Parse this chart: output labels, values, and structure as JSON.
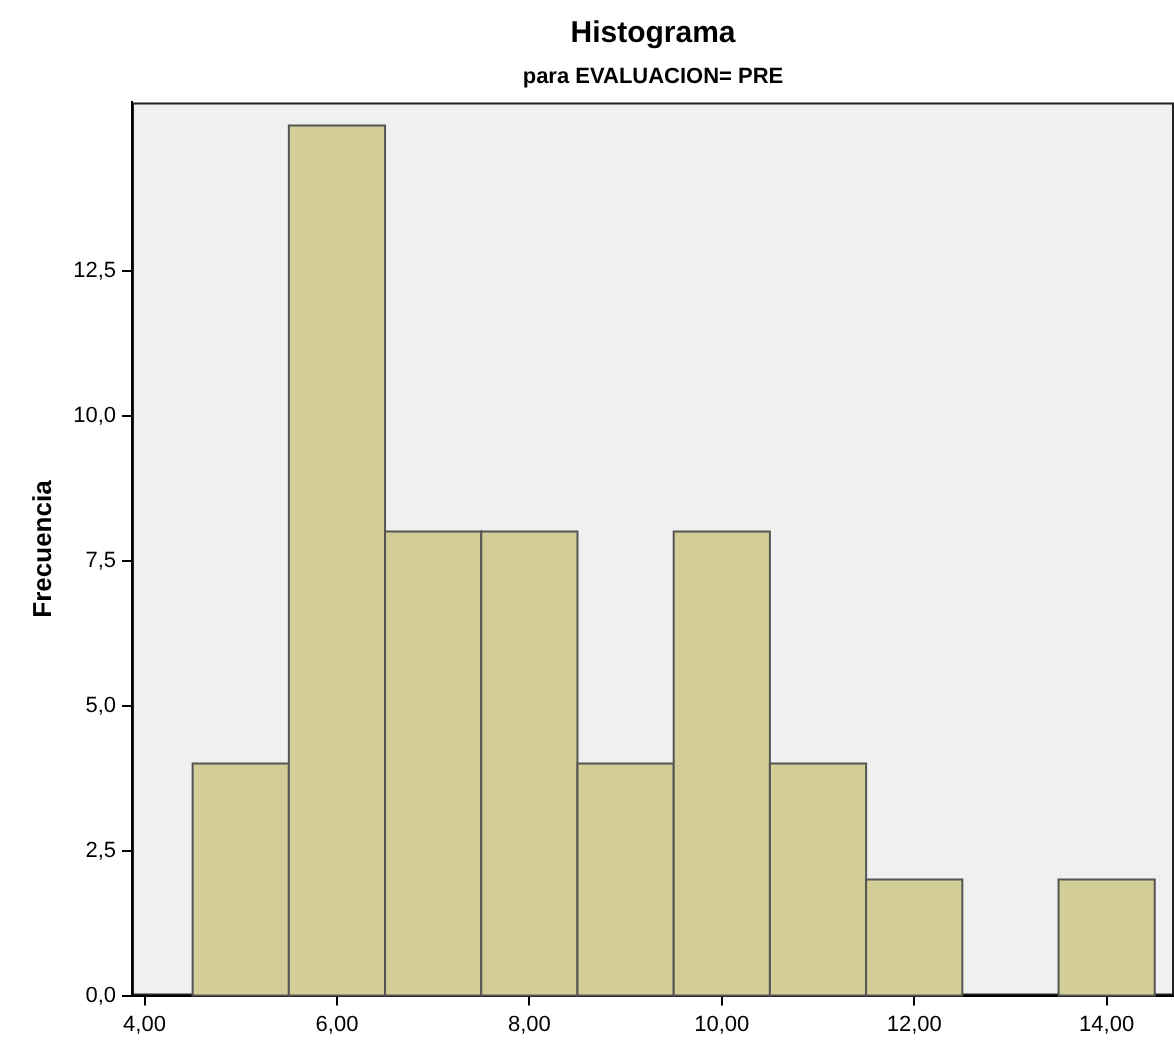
{
  "chart_data": {
    "type": "histogram",
    "title": "Histograma",
    "subtitle": "para EVALUACION= PRE",
    "ylabel": "Frecuencia",
    "bins": [
      4.5,
      5.5,
      6.5,
      7.5,
      8.5,
      9.5,
      10.5,
      11.5,
      12.5,
      13.5,
      14.5
    ],
    "values": [
      4,
      15,
      8,
      8,
      4,
      8,
      4,
      2,
      0,
      2
    ],
    "color": "#d3ce97",
    "xlim": [
      3.87,
      14.7
    ],
    "xticks": [
      {
        "value": 4,
        "label": "4,00"
      },
      {
        "value": 6,
        "label": "6,00"
      },
      {
        "value": 8,
        "label": "8,00"
      },
      {
        "value": 10,
        "label": "10,00"
      },
      {
        "value": 12,
        "label": "12,00"
      },
      {
        "value": 14,
        "label": "14,00"
      }
    ],
    "ylim": [
      0,
      15.4
    ],
    "yticks": [
      {
        "value": 0,
        "label": "0,0"
      },
      {
        "value": 2.5,
        "label": "2,5"
      },
      {
        "value": 5,
        "label": "5,0"
      },
      {
        "value": 7.5,
        "label": "7,5"
      },
      {
        "value": 10,
        "label": "10,0"
      },
      {
        "value": 12.5,
        "label": "12,5"
      }
    ],
    "grid": false,
    "legend": false
  }
}
